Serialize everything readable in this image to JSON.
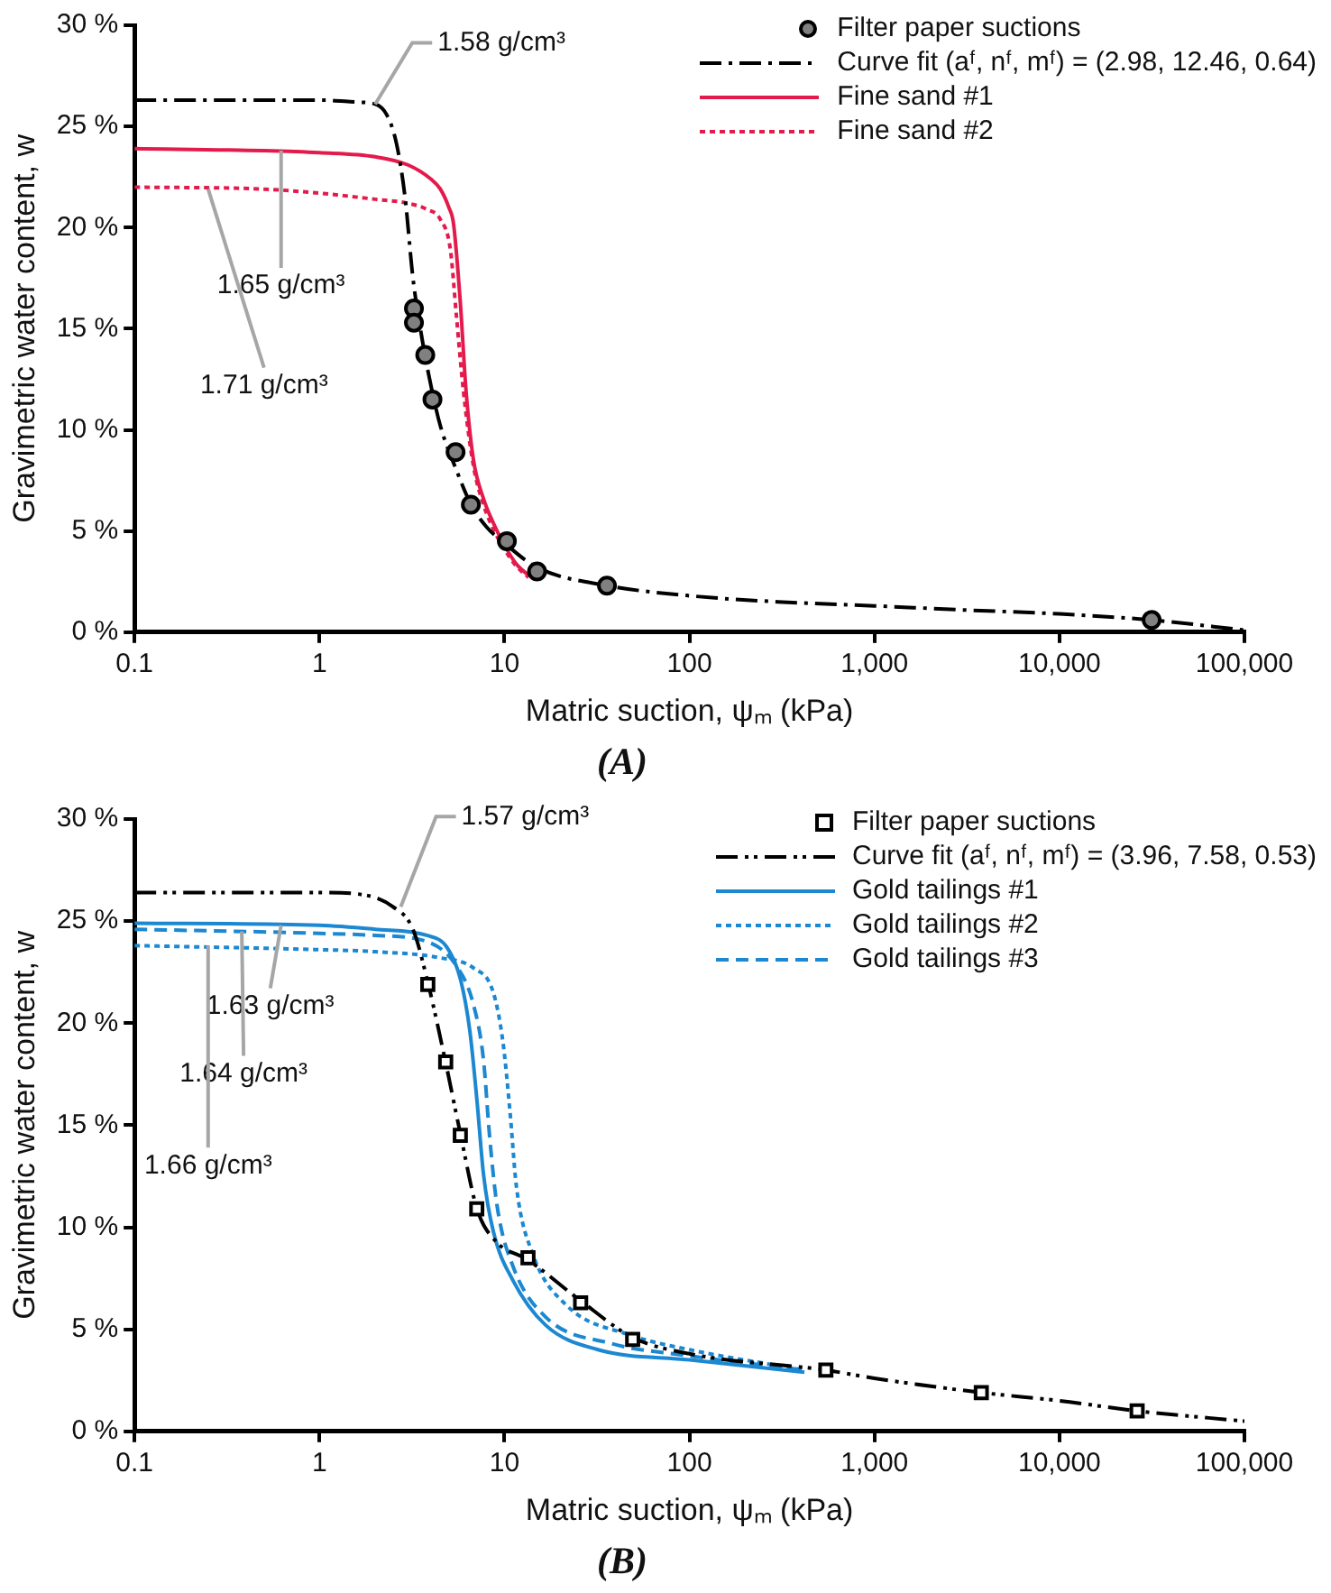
{
  "chart_data": [
    {
      "type": "line",
      "title": "(A)",
      "xlabel": "Matric suction, ψₘ (kPa)",
      "ylabel": "Gravimetric water content, w",
      "log": "x",
      "xlim": [
        0.1,
        100000
      ],
      "xticks": [
        0.1,
        1,
        10,
        100,
        {
          "value": 1000,
          "label": "1,000"
        },
        {
          "value": 10000,
          "label": "10,000"
        },
        {
          "value": 100000,
          "label": "100,000"
        }
      ],
      "ylim": [
        0,
        30
      ],
      "yticks": [
        {
          "value": 0,
          "label": "0 %"
        },
        {
          "value": 5,
          "label": "5 %"
        },
        {
          "value": 10,
          "label": "10 %"
        },
        {
          "value": 15,
          "label": "15 %"
        },
        {
          "value": 20,
          "label": "20 %"
        },
        {
          "value": 25,
          "label": "25 %"
        },
        {
          "value": 30,
          "label": "30 %"
        }
      ],
      "legend": "top right",
      "annotations": [
        {
          "text": "1.58 g/cm³",
          "x": 2,
          "y": 26.1
        },
        {
          "text": "1.65 g/cm³",
          "x": 0.62,
          "y": 23.8
        },
        {
          "text": "1.71 g/cm³",
          "x": 0.25,
          "y": 21.9
        }
      ],
      "series": [
        {
          "name": "Filter paper suctions",
          "type": "scatter",
          "marker": "circle",
          "color": "#808080",
          "x": [
            3.24,
            3.24,
            3.73,
            4.08,
            5.44,
            6.58,
            10.3,
            15,
            35.8,
            31500
          ],
          "values": [
            16.0,
            15.3,
            13.7,
            11.5,
            8.9,
            6.3,
            4.5,
            3.0,
            2.3,
            0.6
          ]
        },
        {
          "name": "Curve fit (aᶠ, nᶠ, mᶠ) = (2.98, 12.46, 0.64)",
          "line_style": "dashdot",
          "color": "#000000",
          "x": [
            0.1,
            0.3,
            1,
            1.6,
            2,
            2.3,
            2.6,
            2.9,
            3.2,
            3.6,
            4,
            4.5,
            5.5,
            6.6,
            8,
            10,
            15,
            36,
            100,
            300,
            1000,
            3000,
            10000,
            31500,
            100000
          ],
          "values": [
            26.3,
            26.3,
            26.3,
            26.2,
            26.1,
            25.6,
            24.2,
            21.5,
            17.5,
            14.4,
            12.2,
            10.2,
            8.0,
            6.3,
            5.2,
            4.4,
            3.2,
            2.3,
            1.8,
            1.5,
            1.3,
            1.1,
            0.9,
            0.6,
            0.1
          ]
        },
        {
          "name": "Fine sand #1",
          "line_style": "solid",
          "color": "#e31b4c",
          "x": [
            0.1,
            0.5,
            1,
            2,
            3,
            4,
            4.5,
            5,
            5.3,
            5.75,
            6.2,
            6.8,
            7.7,
            8.7,
            10,
            11.5,
            13.5
          ],
          "values": [
            23.9,
            23.8,
            23.7,
            23.5,
            23.1,
            22.4,
            21.9,
            21.0,
            20.2,
            16.5,
            11.9,
            8.5,
            6.6,
            5.4,
            4.3,
            3.4,
            2.8
          ]
        },
        {
          "name": "Fine sand #2",
          "line_style": "dotted",
          "color": "#e31b4c",
          "x": [
            0.1,
            0.5,
            1,
            2,
            3,
            3.8,
            4.5,
            5.1,
            5.5,
            6.0,
            6.8,
            7.7,
            8.7,
            10,
            11.5,
            13.5
          ],
          "values": [
            22.0,
            21.9,
            21.7,
            21.4,
            21.2,
            20.9,
            20.4,
            18.9,
            15.6,
            11.9,
            8.2,
            6.3,
            5.1,
            4.1,
            3.3,
            2.7
          ]
        }
      ]
    },
    {
      "type": "line",
      "title": "(B)",
      "xlabel": "Matric suction, ψₘ (kPa)",
      "ylabel": "Gravimetric water content, w",
      "log": "x",
      "xlim": [
        0.1,
        100000
      ],
      "xticks": [
        0.1,
        1,
        10,
        100,
        {
          "value": 1000,
          "label": "1,000"
        },
        {
          "value": 10000,
          "label": "10,000"
        },
        {
          "value": 100000,
          "label": "100,000"
        }
      ],
      "ylim": [
        0,
        30
      ],
      "yticks": [
        {
          "value": 0,
          "label": "0 %"
        },
        {
          "value": 5,
          "label": "5 %"
        },
        {
          "value": 10,
          "label": "10 %"
        },
        {
          "value": 15,
          "label": "15 %"
        },
        {
          "value": 20,
          "label": "20 %"
        },
        {
          "value": 25,
          "label": "25 %"
        },
        {
          "value": 30,
          "label": "30 %"
        }
      ],
      "legend": "top right",
      "annotations": [
        {
          "text": "1.57 g/cm³",
          "x": 2.75,
          "y": 25.7
        },
        {
          "text": "1.63 g/cm³",
          "x": 0.62,
          "y": 24.8
        },
        {
          "text": "1.64 g/cm³",
          "x": 0.38,
          "y": 24.5
        },
        {
          "text": "1.66 g/cm³",
          "x": 0.25,
          "y": 23.8
        }
      ],
      "series": [
        {
          "name": "Filter paper suctions",
          "type": "scatter",
          "marker": "square",
          "color": "#000000",
          "x": [
            3.85,
            4.81,
            5.77,
            7.08,
            13.4,
            25.8,
            49.3,
            546,
            3780,
            26300
          ],
          "values": [
            21.9,
            18.1,
            14.5,
            10.9,
            8.5,
            6.3,
            4.5,
            3.0,
            1.9,
            1.0
          ]
        },
        {
          "name": "Curve fit (aᶠ, nᶠ, mᶠ) = (3.96, 7.58, 0.53)",
          "line_style": "dashdotdot",
          "color": "#000000",
          "x": [
            0.1,
            0.5,
            1,
            1.7,
            2.5,
            3.2,
            3.85,
            4.8,
            5.8,
            7.1,
            9,
            13.4,
            25.8,
            49.3,
            100,
            546,
            1000,
            3780,
            10000,
            26300,
            100000
          ],
          "values": [
            26.4,
            26.4,
            26.4,
            26.3,
            25.7,
            24.6,
            22.0,
            18.1,
            14.5,
            10.9,
            9.3,
            8.4,
            6.4,
            4.6,
            3.8,
            3.0,
            2.6,
            1.9,
            1.5,
            1.0,
            0.5
          ]
        },
        {
          "name": "Gold tailings #1",
          "line_style": "solid",
          "color": "#1b88d1",
          "x": [
            0.1,
            1,
            2,
            3.8,
            4.9,
            5.8,
            6.5,
            7.1,
            7.7,
            8.7,
            11.1,
            16.7,
            32,
            100,
            418
          ],
          "values": [
            24.9,
            24.8,
            24.6,
            24.3,
            23.7,
            22.1,
            19.6,
            16.2,
            12.6,
            9.8,
            7.4,
            5.2,
            4.0,
            3.5,
            2.9
          ]
        },
        {
          "name": "Gold tailings #2",
          "line_style": "dotted",
          "color": "#1b88d1",
          "x": [
            0.1,
            1,
            2,
            4.5,
            6.8,
            8.7,
            9.8,
            10.7,
            11.6,
            14.2,
            21.5,
            48.6,
            100,
            418
          ],
          "values": [
            23.8,
            23.6,
            23.5,
            23.2,
            22.7,
            21.5,
            19.1,
            15.7,
            12.0,
            8.7,
            6.2,
            4.7,
            4.0,
            3.0
          ]
        },
        {
          "name": "Gold tailings #3",
          "line_style": "dashed",
          "color": "#1b88d1",
          "x": [
            0.1,
            1,
            2,
            3.8,
            5.5,
            6.8,
            7.7,
            8.3,
            9.1,
            11.1,
            16.7,
            38,
            100,
            418
          ],
          "values": [
            24.6,
            24.4,
            24.3,
            24.0,
            22.8,
            20.9,
            18.2,
            14.5,
            11.1,
            8.1,
            5.6,
            4.3,
            3.7,
            3.0
          ]
        }
      ]
    }
  ]
}
